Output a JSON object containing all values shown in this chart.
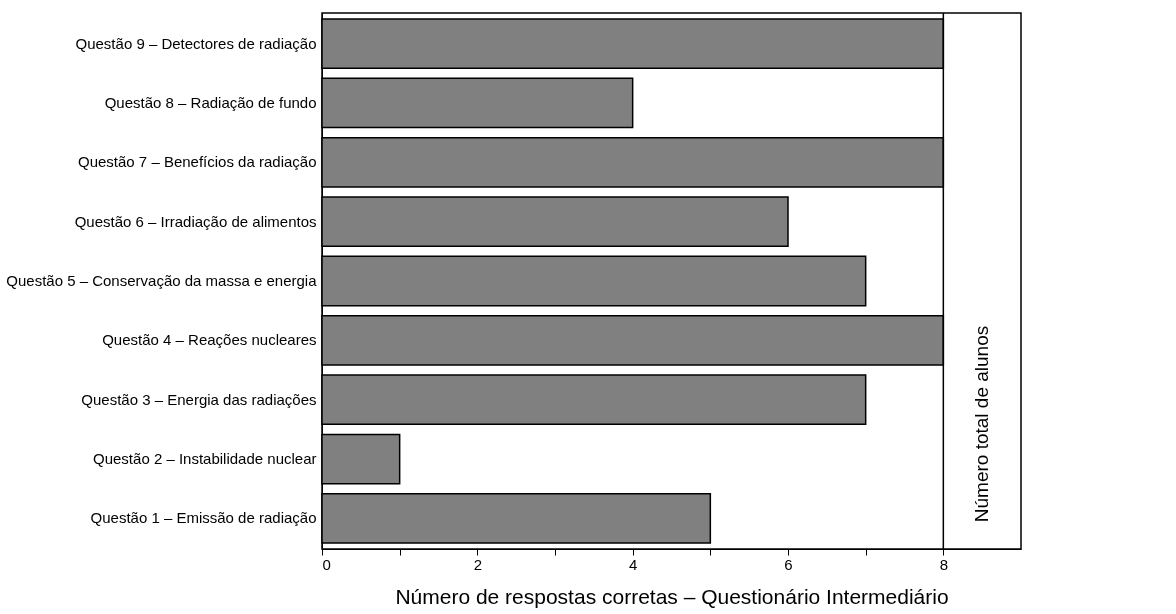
{
  "chart_data": {
    "type": "bar",
    "orientation": "horizontal",
    "categories": [
      "Questão 9 – Detectores de radiação",
      "Questão 8 – Radiação de fundo",
      "Questão 7 – Benefícios da radiação",
      "Questão 6 – Irradiação de alimentos",
      "Questão 5 – Conservação da massa e energia",
      "Questão 4 – Reações nucleares",
      "Questão 3 – Energia das radiações",
      "Questão 2 – Instabilidade nuclear",
      "Questão 1 – Emissão de radiação"
    ],
    "values": [
      8,
      4,
      8,
      6,
      7,
      8,
      7,
      1,
      5
    ],
    "color": "#808080",
    "xlabel": "Número de respostas corretas – Questionário Intermediário",
    "xlim": [
      0,
      9
    ],
    "xticks": [
      0,
      {
        "value": 1,
        "label": null
      },
      2,
      {
        "value": 3,
        "label": null
      },
      4,
      {
        "value": 5,
        "label": null
      },
      6,
      {
        "value": 7,
        "label": null
      },
      8
    ],
    "ref_lines": [
      {
        "axis": "x",
        "value": 8,
        "label": "Número total de alunos",
        "color": "#000000"
      }
    ]
  }
}
